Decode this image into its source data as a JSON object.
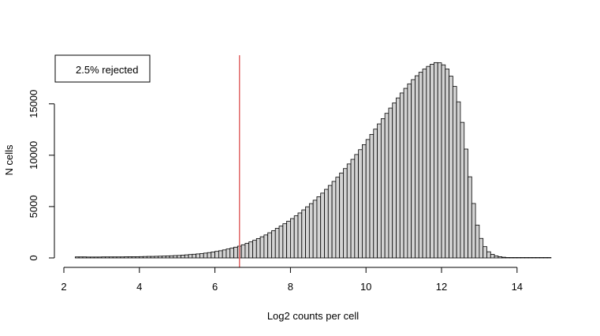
{
  "chart_data": {
    "type": "bar",
    "title": "",
    "xlabel": "Log2 counts per cell",
    "ylabel": "N cells",
    "xlim": [
      2.3,
      14.9
    ],
    "ylim": [
      0,
      19300
    ],
    "bin_width": 0.1,
    "bin_start": 2.3,
    "x_ticks": [
      2,
      4,
      6,
      8,
      10,
      12,
      14
    ],
    "y_ticks": [
      0,
      5000,
      10000,
      15000
    ],
    "grid": false,
    "legend": {
      "text": "2.5% rejected",
      "placement": "top-left"
    },
    "threshold": {
      "x": 6.65,
      "color": "#e06666"
    },
    "bar_fill": "#d3d3d3",
    "bar_stroke": "#000000",
    "values": [
      100,
      100,
      100,
      90,
      90,
      90,
      90,
      100,
      100,
      100,
      100,
      100,
      100,
      110,
      120,
      120,
      120,
      130,
      140,
      150,
      150,
      160,
      170,
      180,
      200,
      210,
      230,
      240,
      270,
      300,
      330,
      360,
      390,
      420,
      470,
      520,
      580,
      640,
      700,
      780,
      870,
      950,
      1050,
      1150,
      1280,
      1420,
      1560,
      1720,
      1890,
      2060,
      2240,
      2450,
      2650,
      2880,
      3100,
      3330,
      3580,
      3830,
      4100,
      4380,
      4680,
      4980,
      5290,
      5620,
      5960,
      6310,
      6680,
      7060,
      7450,
      7860,
      8270,
      8700,
      9150,
      9600,
      10070,
      10540,
      11030,
      11530,
      12030,
      12540,
      13050,
      13560,
      14080,
      14590,
      15090,
      15580,
      16060,
      16510,
      16950,
      17360,
      17740,
      18080,
      18390,
      18650,
      18860,
      19020,
      19000,
      18800,
      18400,
      17700,
      16700,
      15200,
      13200,
      10600,
      7900,
      5300,
      3200,
      1900,
      1100,
      600,
      350,
      200,
      120,
      70,
      40,
      25,
      15,
      10,
      5,
      3,
      2,
      1,
      1,
      0,
      0,
      0
    ]
  }
}
